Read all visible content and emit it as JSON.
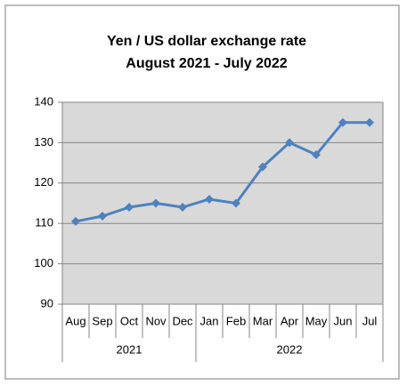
{
  "chart_data": {
    "type": "line",
    "title": "Yen / US dollar exchange rate",
    "subtitle": "August 2021 - July 2022",
    "category_groups": [
      {
        "name": "2021",
        "categories": [
          "Aug",
          "Sep",
          "Oct",
          "Nov",
          "Dec"
        ]
      },
      {
        "name": "2022",
        "categories": [
          "Jan",
          "Feb",
          "Mar",
          "Apr",
          "May",
          "Jun",
          "Jul"
        ]
      }
    ],
    "values": [
      110.5,
      111.8,
      114,
      115,
      114,
      116,
      115,
      124,
      130,
      127,
      135,
      135
    ],
    "color": "#4f81bd",
    "ylim": [
      90,
      140
    ],
    "yticks": [
      90,
      100,
      110,
      120,
      130,
      140
    ],
    "grid": true
  }
}
